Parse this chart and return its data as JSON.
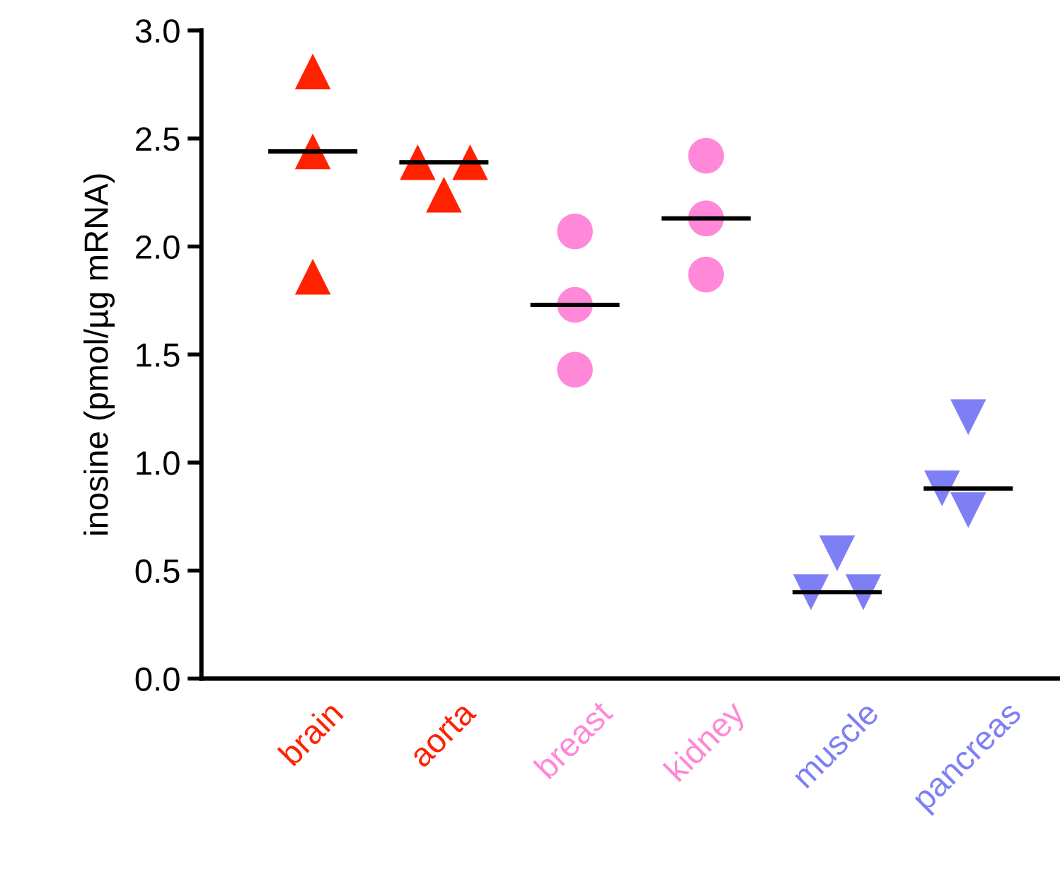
{
  "chart_data": {
    "type": "scatter",
    "ylabel": "inosine (pmol/µg mRNA)",
    "categories": [
      "brain",
      "aorta",
      "breast",
      "kidney",
      "muscle",
      "pancreas"
    ],
    "ylim": [
      0,
      3.0
    ],
    "yticks": [
      {
        "value": 0,
        "label": "0.0"
      },
      {
        "value": 0.5,
        "label": "0.5"
      },
      {
        "value": 1,
        "label": "1.0"
      },
      {
        "value": 1.5,
        "label": "1.5"
      },
      {
        "value": 2,
        "label": "2.0"
      },
      {
        "value": 2.5,
        "label": "2.5"
      },
      {
        "value": 3,
        "label": "3.0"
      }
    ],
    "grid": false,
    "legend": false,
    "series": [
      {
        "color": "#ff2200",
        "marker": "triangle",
        "x": [
          "brain",
          "brain",
          "brain"
        ],
        "values": [
          2.81,
          2.44,
          1.86
        ]
      },
      {
        "color": "#ff2200",
        "marker": "triangle",
        "x": [
          "aorta",
          "aorta",
          "aorta"
        ],
        "values": [
          2.24,
          2.39,
          2.39
        ]
      },
      {
        "color": "#ff88d8",
        "marker": "circle",
        "x": [
          "breast",
          "breast",
          "breast"
        ],
        "values": [
          2.07,
          1.73,
          1.43
        ]
      },
      {
        "color": "#ff88d8",
        "marker": "circle",
        "x": [
          "kidney",
          "kidney",
          "kidney"
        ],
        "values": [
          2.42,
          2.13,
          1.87
        ]
      },
      {
        "color": "#7f7ff5",
        "marker": "triangle_down",
        "x": [
          "muscle",
          "muscle",
          "muscle"
        ],
        "values": [
          0.58,
          0.4,
          0.4
        ]
      },
      {
        "color": "#7f7ff5",
        "marker": "triangle_down",
        "x": [
          "pancreas",
          "pancreas",
          "pancreas"
        ],
        "values": [
          1.21,
          0.78,
          0.88
        ]
      }
    ],
    "ref_lines": [
      {
        "axis": "y",
        "value": 2.44,
        "color": "#000000",
        "line_style": "solid"
      },
      {
        "axis": "y",
        "value": 2.39,
        "color": "#000000",
        "line_style": "solid"
      },
      {
        "axis": "y",
        "value": 1.73,
        "color": "#000000",
        "line_style": "solid"
      },
      {
        "axis": "y",
        "value": 2.13,
        "color": "#000000",
        "line_style": "solid"
      },
      {
        "axis": "y",
        "value": 0.4,
        "color": "#000000",
        "line_style": "solid"
      },
      {
        "axis": "y",
        "value": 0.88,
        "color": "#000000",
        "line_style": "solid"
      }
    ]
  }
}
